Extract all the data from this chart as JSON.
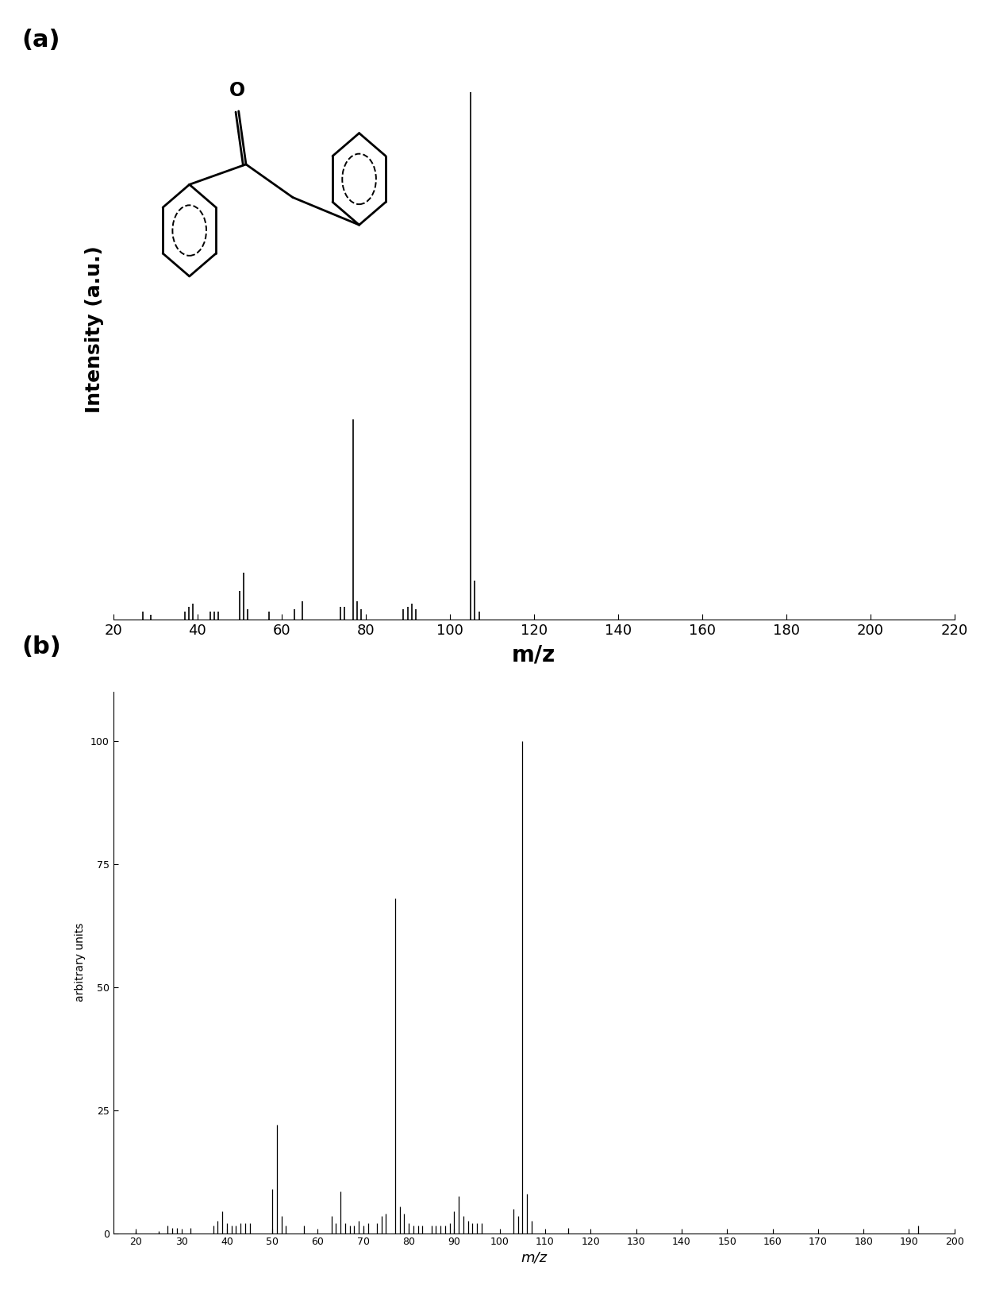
{
  "panel_a": {
    "xlabel": "m/z",
    "ylabel": "Intensity (a.u.)",
    "xlim": [
      20,
      220
    ],
    "ylim": [
      0,
      110
    ],
    "xticks": [
      20,
      40,
      60,
      80,
      100,
      120,
      140,
      160,
      180,
      200,
      220
    ],
    "peaks": [
      [
        27,
        1.5
      ],
      [
        29,
        1.0
      ],
      [
        37,
        1.5
      ],
      [
        38,
        2.5
      ],
      [
        39,
        3.0
      ],
      [
        43,
        1.5
      ],
      [
        44,
        1.5
      ],
      [
        45,
        1.5
      ],
      [
        50,
        5.5
      ],
      [
        51,
        9.0
      ],
      [
        52,
        2.0
      ],
      [
        57,
        1.5
      ],
      [
        63,
        2.0
      ],
      [
        65,
        3.5
      ],
      [
        74,
        2.5
      ],
      [
        75,
        2.5
      ],
      [
        77,
        38.0
      ],
      [
        78,
        3.5
      ],
      [
        79,
        2.0
      ],
      [
        89,
        2.0
      ],
      [
        90,
        2.5
      ],
      [
        91,
        3.0
      ],
      [
        92,
        2.0
      ],
      [
        105,
        100.0
      ],
      [
        106,
        7.5
      ],
      [
        107,
        1.5
      ]
    ]
  },
  "panel_b": {
    "xlabel": "m/z",
    "ylabel": "arbitrary units",
    "xlim": [
      15,
      200
    ],
    "ylim": [
      0,
      110
    ],
    "xticks": [
      20,
      30,
      40,
      50,
      60,
      70,
      80,
      90,
      100,
      110,
      120,
      130,
      140,
      150,
      160,
      170,
      180,
      190,
      200
    ],
    "yticks": [
      0,
      25,
      50,
      75,
      100
    ],
    "ytick_labels": [
      "0",
      "25",
      "50",
      "75",
      "100"
    ],
    "peaks": [
      [
        20,
        0.5
      ],
      [
        25,
        0.5
      ],
      [
        27,
        1.5
      ],
      [
        28,
        1.0
      ],
      [
        29,
        1.0
      ],
      [
        32,
        1.0
      ],
      [
        37,
        1.5
      ],
      [
        38,
        2.5
      ],
      [
        39,
        4.5
      ],
      [
        40,
        2.0
      ],
      [
        41,
        1.5
      ],
      [
        42,
        1.5
      ],
      [
        43,
        2.0
      ],
      [
        44,
        2.0
      ],
      [
        45,
        2.0
      ],
      [
        50,
        9.0
      ],
      [
        51,
        22.0
      ],
      [
        52,
        3.5
      ],
      [
        53,
        1.5
      ],
      [
        57,
        1.5
      ],
      [
        63,
        3.5
      ],
      [
        64,
        2.0
      ],
      [
        65,
        8.5
      ],
      [
        66,
        2.0
      ],
      [
        67,
        1.5
      ],
      [
        68,
        1.5
      ],
      [
        69,
        2.5
      ],
      [
        70,
        1.5
      ],
      [
        71,
        2.0
      ],
      [
        73,
        2.0
      ],
      [
        74,
        3.5
      ],
      [
        75,
        4.0
      ],
      [
        77,
        68.0
      ],
      [
        78,
        5.5
      ],
      [
        79,
        4.0
      ],
      [
        80,
        2.0
      ],
      [
        81,
        1.5
      ],
      [
        82,
        1.5
      ],
      [
        83,
        1.5
      ],
      [
        85,
        1.5
      ],
      [
        86,
        1.5
      ],
      [
        87,
        1.5
      ],
      [
        88,
        1.5
      ],
      [
        89,
        2.0
      ],
      [
        90,
        4.5
      ],
      [
        91,
        7.5
      ],
      [
        92,
        3.5
      ],
      [
        93,
        2.5
      ],
      [
        94,
        2.0
      ],
      [
        95,
        2.0
      ],
      [
        96,
        2.0
      ],
      [
        103,
        5.0
      ],
      [
        104,
        3.5
      ],
      [
        105,
        100.0
      ],
      [
        106,
        8.0
      ],
      [
        107,
        2.5
      ],
      [
        115,
        1.0
      ],
      [
        192,
        1.5
      ]
    ]
  },
  "background_color": "#ffffff",
  "line_color": "#000000",
  "label_a": "(a)",
  "label_b": "(b)"
}
